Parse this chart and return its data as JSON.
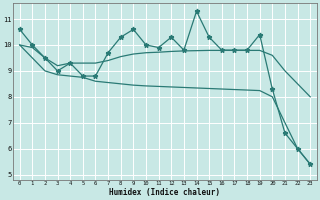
{
  "xlabel": "Humidex (Indice chaleur)",
  "x_values": [
    0,
    1,
    2,
    3,
    4,
    5,
    6,
    7,
    8,
    9,
    10,
    11,
    12,
    13,
    14,
    15,
    16,
    17,
    18,
    19,
    20,
    21,
    22,
    23
  ],
  "line1": [
    10.6,
    10.0,
    9.5,
    9.0,
    9.3,
    8.8,
    8.8,
    9.7,
    10.3,
    10.6,
    10.0,
    9.9,
    10.3,
    9.8,
    11.3,
    10.3,
    9.8,
    9.8,
    9.8,
    10.4,
    8.3,
    6.6,
    6.0,
    5.4
  ],
  "line2": [
    10.0,
    9.9,
    9.5,
    9.2,
    9.3,
    9.3,
    9.3,
    9.4,
    9.55,
    9.65,
    9.7,
    9.72,
    9.75,
    9.77,
    9.78,
    9.79,
    9.79,
    9.79,
    9.79,
    9.79,
    9.6,
    9.0,
    8.5,
    8.0
  ],
  "line3": [
    10.0,
    9.5,
    9.0,
    8.85,
    8.8,
    8.75,
    8.6,
    8.55,
    8.5,
    8.45,
    8.42,
    8.4,
    8.38,
    8.36,
    8.34,
    8.32,
    8.3,
    8.28,
    8.26,
    8.24,
    8.0,
    7.0,
    6.0,
    5.4
  ],
  "bg_color": "#c8e8e5",
  "line_color": "#2a7a75",
  "grid_color": "#ffffff",
  "ylim": [
    4.8,
    11.6
  ],
  "xlim": [
    -0.5,
    23.5
  ],
  "yticks": [
    5,
    6,
    7,
    8,
    9,
    10,
    11
  ],
  "marker": "*",
  "marker_size": 3.5,
  "linewidth": 0.9
}
